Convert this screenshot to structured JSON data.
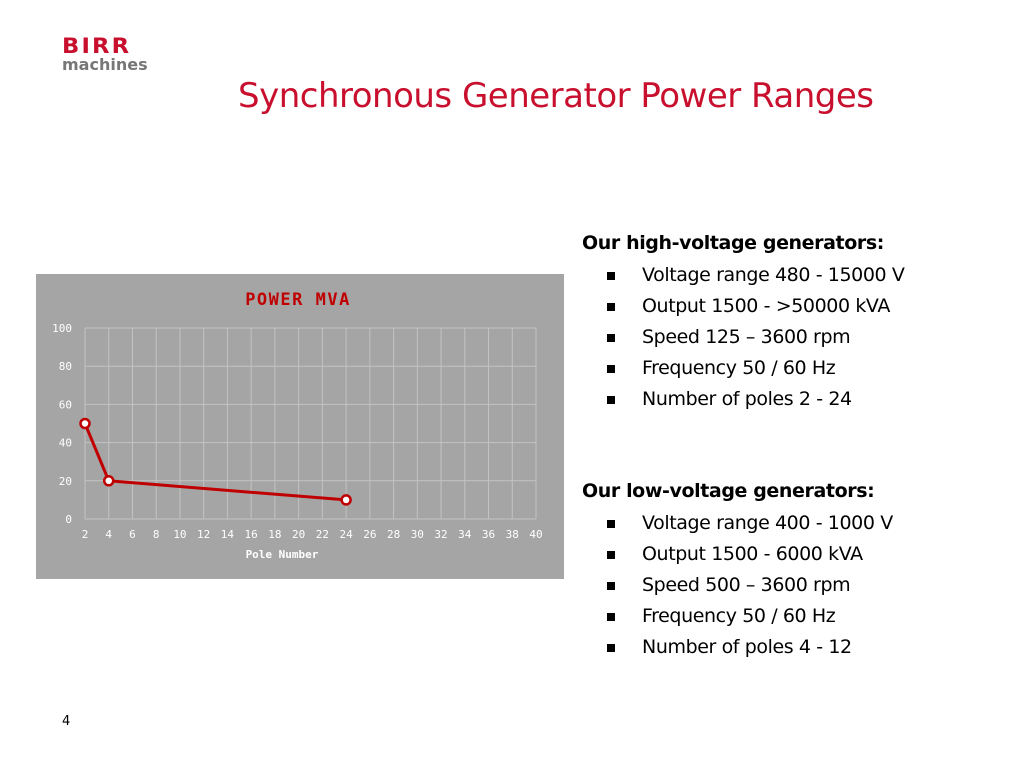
{
  "logo": {
    "brand": "BIRR",
    "subtitle": "machines",
    "color": "#c8102e"
  },
  "slide": {
    "title": "Synchronous Generator Power Ranges",
    "page_number": "4"
  },
  "high_voltage": {
    "heading": "Our high-voltage generators:",
    "items": [
      "Voltage range 480 - 15000 V",
      "Output 1500 - >50000 kVA",
      "Speed 125 – 3600 rpm",
      "Frequency 50 / 60 Hz",
      "Number of poles 2 - 24"
    ]
  },
  "low_voltage": {
    "heading": "Our low-voltage generators:",
    "items": [
      "Voltage range 400 - 1000 V",
      "Output 1500 - 6000 kVA",
      "Speed 500 – 3600 rpm",
      "Frequency 50 / 60 Hz",
      "Number of poles 4 - 12"
    ]
  },
  "chart_data": {
    "type": "line",
    "title": "POWER MVA",
    "xlabel": "Pole Number",
    "ylabel": "",
    "xlim": [
      2,
      40
    ],
    "ylim": [
      0,
      100
    ],
    "x_ticks": [
      2,
      4,
      6,
      8,
      10,
      12,
      14,
      16,
      18,
      20,
      22,
      24,
      26,
      28,
      30,
      32,
      34,
      36,
      38,
      40
    ],
    "y_ticks": [
      0,
      20,
      40,
      60,
      80,
      100
    ],
    "grid": true,
    "legend": "none",
    "background_color": "#a5a5a5",
    "series": [
      {
        "color": "#c00000",
        "x": [
          2,
          4,
          24
        ],
        "y": [
          50,
          20,
          10
        ]
      }
    ]
  }
}
